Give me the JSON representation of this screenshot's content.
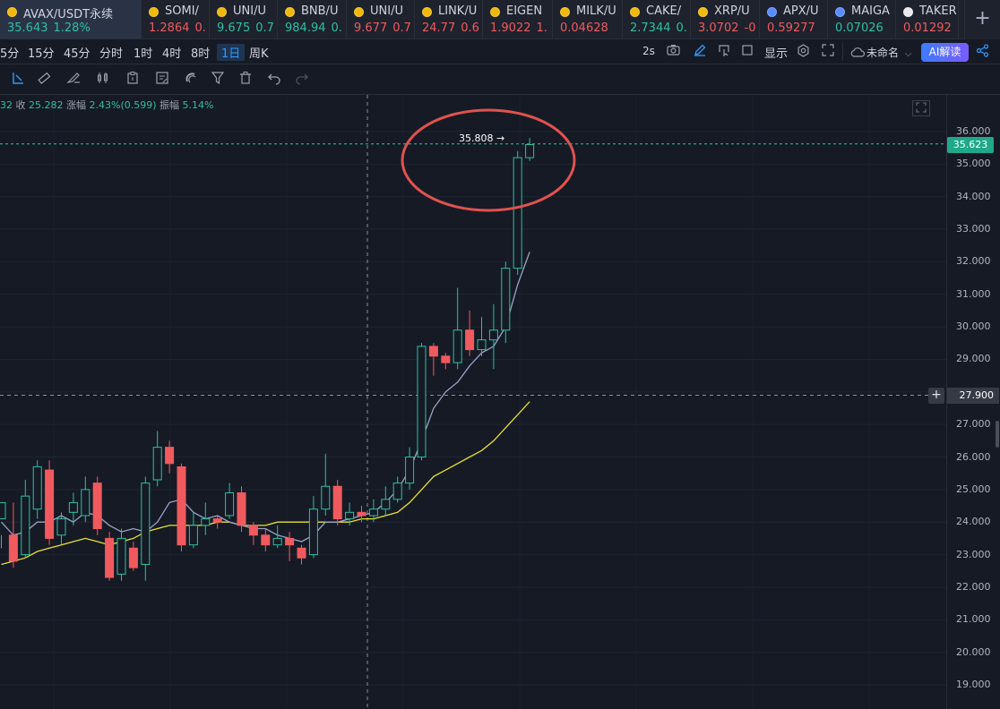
{
  "tabs": [
    {
      "coin": "gold",
      "symbol": "AVAX/USDT永续",
      "price": "35.643",
      "change": "1.28%",
      "direction": "up",
      "active": true
    },
    {
      "coin": "gold",
      "symbol": "SOMI/",
      "price": "1.2864",
      "change": "0.",
      "direction": "down"
    },
    {
      "coin": "gold",
      "symbol": "UNI/U",
      "price": "9.675",
      "change": "0.7",
      "direction": "up"
    },
    {
      "coin": "gold",
      "symbol": "BNB/U",
      "price": "984.94",
      "change": "0.",
      "direction": "up"
    },
    {
      "coin": "gold",
      "symbol": "UNI/U",
      "price": "9.677",
      "change": "0.7",
      "direction": "down"
    },
    {
      "coin": "gold",
      "symbol": "LINK/U",
      "price": "24.77",
      "change": "0.6",
      "direction": "down"
    },
    {
      "coin": "gold",
      "symbol": "EIGEN",
      "price": "1.9022",
      "change": "1.",
      "direction": "down"
    },
    {
      "coin": "gold",
      "symbol": "MILK/U",
      "price": "0.04628",
      "change": "",
      "direction": "down"
    },
    {
      "coin": "gold",
      "symbol": "CAKE/",
      "price": "2.7344",
      "change": "0.",
      "direction": "up"
    },
    {
      "coin": "gold",
      "symbol": "XRP/U",
      "price": "3.0702",
      "change": "-0",
      "direction": "down"
    },
    {
      "coin": "blue",
      "symbol": "APX/U",
      "price": "0.59277",
      "change": "",
      "direction": "down"
    },
    {
      "coin": "blue",
      "symbol": "MAIGA",
      "price": "0.07026",
      "change": "",
      "direction": "up"
    },
    {
      "coin": "white",
      "symbol": "TAKER",
      "price": "0.01292",
      "change": "",
      "direction": "down"
    }
  ],
  "toolbar": {
    "intervals": [
      "5分",
      "15分",
      "45分",
      "分时",
      "1时",
      "4时",
      "8时",
      "1日",
      "周K"
    ],
    "active_interval": "1日",
    "refresh": "2s",
    "display_label": "显示",
    "layout_name": "未命名",
    "ai_label": "AI解读",
    "add_tab_icon": "+"
  },
  "ohlc": {
    "prefix": "32",
    "close_label": "收",
    "close": "25.282",
    "change_label": "涨幅",
    "change": "2.43%(0.599)",
    "amp_label": "振幅",
    "amplitude": "5.14%"
  },
  "chart": {
    "high_annotation": "35.808",
    "last_price": "35.623",
    "crosshair_price": "27.900",
    "crosshair_plus": "+",
    "colors": {
      "up": "#2fbfa0",
      "down": "#f05a5e",
      "ma_short": "#9aa3c8",
      "ma_long": "#e8e22c",
      "highlight": "#e0524f"
    }
  },
  "chart_data": {
    "type": "candlestick",
    "y_axis_ticks": [
      "36.000",
      "35.000",
      "34.000",
      "33.000",
      "32.000",
      "31.000",
      "30.000",
      "29.000",
      "28.000",
      "27.000",
      "26.000",
      "25.000",
      "24.000",
      "23.000",
      "22.000",
      "21.000",
      "20.000",
      "19.000"
    ],
    "ylim": [
      18.6,
      36.4
    ],
    "candles": [
      [
        24.1,
        24.6,
        23.6,
        23.2
      ],
      [
        23.6,
        22.8,
        24.6,
        22.6
      ],
      [
        23.0,
        24.8,
        25.3,
        22.9
      ],
      [
        24.4,
        25.7,
        25.9,
        24.1
      ],
      [
        25.6,
        23.5,
        25.9,
        23.3
      ],
      [
        23.6,
        24.1,
        24.3,
        23.3
      ],
      [
        24.3,
        24.6,
        24.9,
        23.9
      ],
      [
        24.2,
        25.0,
        25.4,
        24.0
      ],
      [
        25.2,
        23.8,
        25.4,
        23.6
      ],
      [
        23.5,
        22.3,
        23.7,
        22.2
      ],
      [
        22.4,
        23.5,
        23.8,
        22.2
      ],
      [
        23.2,
        22.6,
        23.4,
        22.5
      ],
      [
        22.7,
        25.2,
        25.4,
        22.2
      ],
      [
        25.3,
        26.3,
        26.8,
        25.1
      ],
      [
        26.3,
        25.8,
        26.5,
        25.5
      ],
      [
        25.7,
        23.3,
        25.8,
        23.1
      ],
      [
        23.3,
        23.9,
        24.3,
        23.2
      ],
      [
        23.9,
        24.1,
        24.6,
        23.6
      ],
      [
        24.1,
        24.0,
        24.2,
        23.8
      ],
      [
        24.2,
        24.9,
        25.2,
        24.1
      ],
      [
        24.9,
        23.9,
        25.1,
        23.7
      ],
      [
        23.9,
        23.6,
        24.0,
        23.3
      ],
      [
        23.6,
        23.3,
        23.8,
        23.1
      ],
      [
        23.3,
        23.5,
        23.9,
        23.2
      ],
      [
        23.5,
        23.3,
        23.7,
        22.8
      ],
      [
        23.2,
        22.9,
        23.3,
        22.7
      ],
      [
        23.0,
        24.4,
        24.8,
        22.9
      ],
      [
        24.4,
        25.1,
        26.1,
        24.2
      ],
      [
        25.1,
        24.1,
        25.3,
        23.9
      ],
      [
        24.1,
        24.3,
        24.6,
        23.9
      ],
      [
        24.3,
        24.2,
        24.5,
        24.0
      ],
      [
        24.2,
        24.4,
        24.7,
        24.0
      ],
      [
        24.4,
        24.7,
        25.1,
        24.2
      ],
      [
        24.7,
        25.2,
        25.4,
        24.6
      ],
      [
        25.2,
        26.0,
        26.3,
        25.0
      ],
      [
        26.0,
        29.4,
        29.5,
        25.9
      ],
      [
        29.4,
        29.1,
        29.5,
        28.5
      ],
      [
        29.1,
        28.9,
        29.2,
        28.7
      ],
      [
        28.9,
        29.9,
        31.2,
        28.7
      ],
      [
        29.9,
        29.3,
        30.5,
        29.1
      ],
      [
        29.3,
        29.6,
        30.3,
        29.1
      ],
      [
        29.6,
        29.9,
        30.7,
        28.7
      ],
      [
        29.9,
        31.8,
        32.0,
        29.5
      ],
      [
        31.8,
        35.2,
        35.4,
        31.6
      ],
      [
        35.2,
        35.6,
        35.8,
        35.1
      ]
    ],
    "ma_short": [
      24.0,
      23.6,
      23.7,
      24.0,
      24.0,
      24.2,
      24.0,
      24.3,
      24.2,
      23.9,
      23.7,
      23.8,
      23.7,
      24.0,
      24.6,
      24.7,
      24.3,
      24.1,
      24.2,
      24.0,
      23.9,
      23.8,
      23.8,
      23.6,
      23.5,
      23.4,
      23.6,
      24.0,
      24.0,
      24.1,
      24.2,
      24.3,
      24.6,
      25.0,
      25.6,
      26.5,
      27.5,
      28.0,
      28.3,
      28.8,
      29.2,
      29.4,
      30.0,
      31.3,
      32.3
    ],
    "ma_long": [
      22.7,
      22.8,
      22.9,
      23.1,
      23.2,
      23.3,
      23.4,
      23.5,
      23.4,
      23.3,
      23.4,
      23.5,
      23.7,
      23.8,
      23.9,
      23.9,
      23.9,
      23.9,
      24.0,
      24.0,
      23.9,
      23.9,
      23.9,
      24.0,
      24.0,
      24.0,
      24.0,
      24.0,
      24.0,
      24.0,
      24.1,
      24.1,
      24.2,
      24.3,
      24.6,
      25.0,
      25.4,
      25.6,
      25.8,
      26.0,
      26.2,
      26.5,
      26.9,
      27.3,
      27.7
    ]
  }
}
